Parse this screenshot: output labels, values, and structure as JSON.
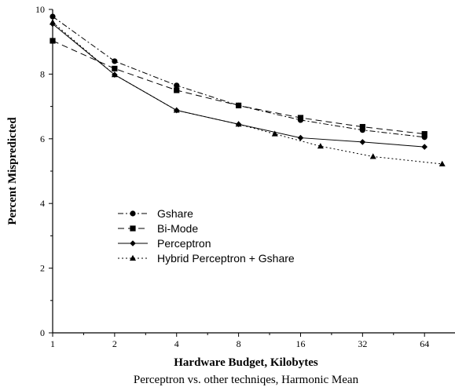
{
  "chart_data": {
    "type": "line",
    "xlabel": "Hardware Budget, Kilobytes",
    "ylabel": "Percent Mispredicted",
    "caption": "Perceptron vs. other techniqes, Harmonic Mean",
    "x_scale": "log2",
    "xlim": [
      1,
      90
    ],
    "ylim": [
      0,
      10
    ],
    "x_ticks": [
      1,
      2,
      4,
      8,
      16,
      32,
      64
    ],
    "y_ticks": [
      0,
      2,
      4,
      6,
      8,
      10
    ],
    "grid": false,
    "legend_position": "center-left",
    "series": [
      {
        "name": "Gshare",
        "marker": "circle",
        "dash": "dash-dot",
        "x": [
          1,
          2,
          4,
          8,
          16,
          32,
          64
        ],
        "y": [
          9.78,
          8.4,
          7.65,
          7.03,
          6.58,
          6.27,
          6.05
        ]
      },
      {
        "name": "Bi-Mode",
        "marker": "square",
        "dash": "dashed",
        "x": [
          1,
          2,
          4,
          8,
          16,
          32,
          64
        ],
        "y": [
          9.03,
          8.17,
          7.5,
          7.03,
          6.65,
          6.37,
          6.15
        ]
      },
      {
        "name": "Perceptron",
        "marker": "diamond",
        "dash": "solid",
        "x": [
          1,
          2,
          4,
          8,
          16,
          32,
          64
        ],
        "y": [
          9.55,
          7.98,
          6.88,
          6.45,
          6.03,
          5.9,
          5.75
        ]
      },
      {
        "name": "Hybrid Perceptron + Gshare",
        "marker": "triangle",
        "dash": "dotted",
        "x": [
          1,
          2,
          4,
          8,
          12,
          20,
          36,
          78
        ],
        "y": [
          9.6,
          7.98,
          6.88,
          6.45,
          6.15,
          5.77,
          5.45,
          5.22
        ]
      }
    ]
  }
}
